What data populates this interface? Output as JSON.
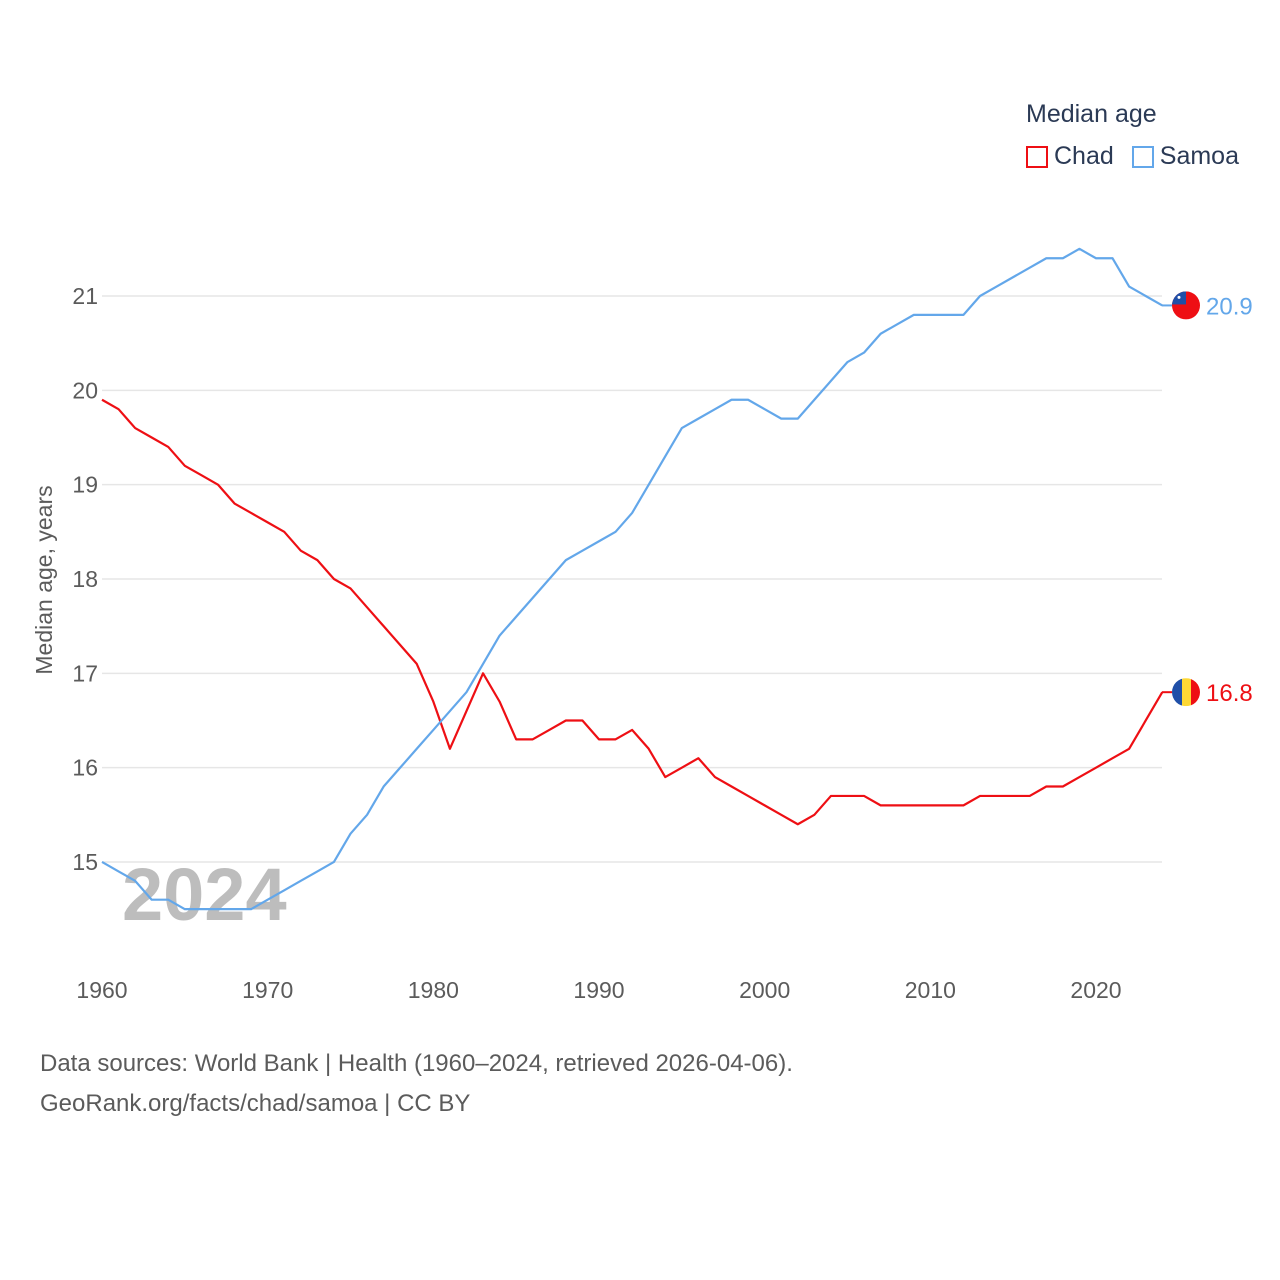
{
  "chart_data": {
    "type": "line",
    "legend_title": "Median age",
    "ylabel": "Median age, years",
    "xlabel": "",
    "year_watermark": "2024",
    "xlim": [
      1960,
      2024
    ],
    "ylim": [
      14.2,
      21.8
    ],
    "x_ticks": [
      "1960",
      "1970",
      "1980",
      "1990",
      "2000",
      "2010",
      "2020"
    ],
    "y_ticks": [
      "15",
      "16",
      "17",
      "18",
      "19",
      "20",
      "21"
    ],
    "grid": true,
    "legend_position": "top-right",
    "x": [
      1960,
      1961,
      1962,
      1963,
      1964,
      1965,
      1966,
      1967,
      1968,
      1969,
      1970,
      1971,
      1972,
      1973,
      1974,
      1975,
      1976,
      1977,
      1978,
      1979,
      1980,
      1981,
      1982,
      1983,
      1984,
      1985,
      1986,
      1987,
      1988,
      1989,
      1990,
      1991,
      1992,
      1993,
      1994,
      1995,
      1996,
      1997,
      1998,
      1999,
      2000,
      2001,
      2002,
      2003,
      2004,
      2005,
      2006,
      2007,
      2008,
      2009,
      2010,
      2011,
      2012,
      2013,
      2014,
      2015,
      2016,
      2017,
      2018,
      2019,
      2020,
      2021,
      2022,
      2023,
      2024
    ],
    "series": [
      {
        "name": "Chad",
        "color": "#ee0f14",
        "end_label": "16.8",
        "values": [
          19.9,
          19.8,
          19.6,
          19.5,
          19.4,
          19.2,
          19.1,
          19.0,
          18.8,
          18.7,
          18.6,
          18.5,
          18.3,
          18.2,
          18.0,
          17.9,
          17.7,
          17.5,
          17.3,
          17.1,
          16.7,
          16.2,
          16.6,
          17.0,
          16.7,
          16.3,
          16.3,
          16.4,
          16.5,
          16.5,
          16.3,
          16.3,
          16.4,
          16.2,
          15.9,
          16.0,
          16.1,
          15.9,
          15.8,
          15.7,
          15.6,
          15.5,
          15.4,
          15.5,
          15.7,
          15.7,
          15.7,
          15.6,
          15.6,
          15.6,
          15.6,
          15.6,
          15.6,
          15.7,
          15.7,
          15.7,
          15.7,
          15.8,
          15.8,
          15.9,
          16.0,
          16.1,
          16.2,
          16.5,
          16.8
        ]
      },
      {
        "name": "Samoa",
        "color": "#63a7ea",
        "end_label": "20.9",
        "values": [
          15.0,
          14.9,
          14.8,
          14.6,
          14.6,
          14.5,
          14.5,
          14.5,
          14.5,
          14.5,
          14.6,
          14.7,
          14.8,
          14.9,
          15.0,
          15.3,
          15.5,
          15.8,
          16.0,
          16.2,
          16.4,
          16.6,
          16.8,
          17.1,
          17.4,
          17.6,
          17.8,
          18.0,
          18.2,
          18.3,
          18.4,
          18.5,
          18.7,
          19.0,
          19.3,
          19.6,
          19.7,
          19.8,
          19.9,
          19.9,
          19.8,
          19.7,
          19.7,
          19.9,
          20.1,
          20.3,
          20.4,
          20.6,
          20.7,
          20.8,
          20.8,
          20.8,
          20.8,
          21.0,
          21.1,
          21.2,
          21.3,
          21.4,
          21.4,
          21.5,
          21.4,
          21.4,
          21.1,
          21.0,
          20.9
        ]
      }
    ]
  },
  "footer": {
    "source_line": "Data sources: World Bank | Health (1960–2024, retrieved 2026-04-06).",
    "credit_line": "GeoRank.org/facts/chad/samoa | CC BY"
  }
}
